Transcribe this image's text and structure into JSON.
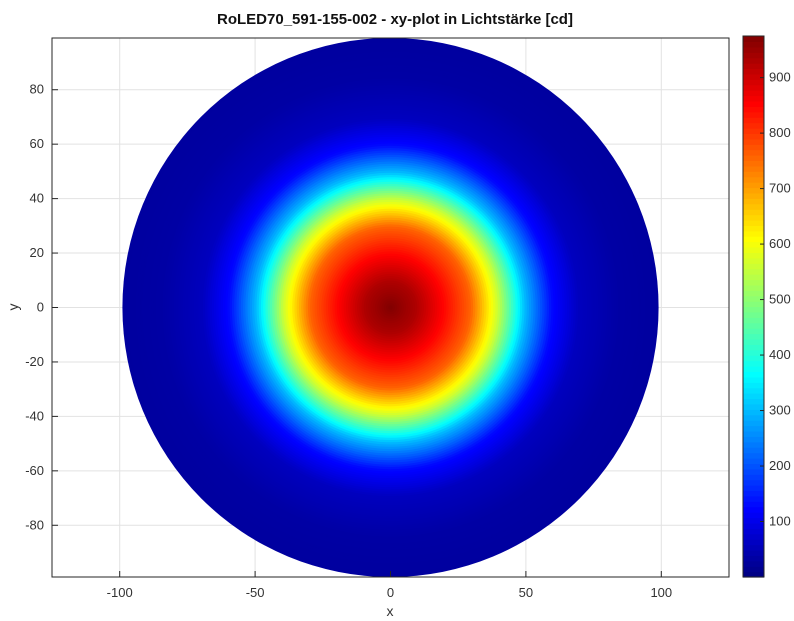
{
  "chart_data": {
    "type": "heatmap",
    "title": "RoLED70_591-155-002 - xy-plot in Lichtstärke [cd]",
    "xlabel": "x",
    "ylabel": "y",
    "xlim": [
      -125,
      125
    ],
    "ylim": [
      -99,
      99
    ],
    "x_ticks": [
      -100,
      -50,
      0,
      50,
      100
    ],
    "y_ticks": [
      -80,
      -60,
      -40,
      -20,
      0,
      20,
      40,
      60,
      80
    ],
    "colorbar": {
      "colormap": "jet",
      "range": [
        0,
        975
      ],
      "ticks": [
        100,
        200,
        300,
        400,
        500,
        600,
        700,
        800,
        900
      ]
    },
    "field": {
      "shape": "disc",
      "radius": 99,
      "center": [
        0,
        0
      ],
      "peak_value": 975,
      "edge_value": 30,
      "description_points": [
        {
          "r": 0,
          "value": 975
        },
        {
          "r": 10,
          "value": 930
        },
        {
          "r": 20,
          "value": 850
        },
        {
          "r": 30,
          "value": 760
        },
        {
          "r": 40,
          "value": 560
        },
        {
          "r": 50,
          "value": 300
        },
        {
          "r": 60,
          "value": 130
        },
        {
          "r": 70,
          "value": 60
        },
        {
          "r": 85,
          "value": 35
        },
        {
          "r": 99,
          "value": 30
        }
      ]
    },
    "grid": true
  }
}
